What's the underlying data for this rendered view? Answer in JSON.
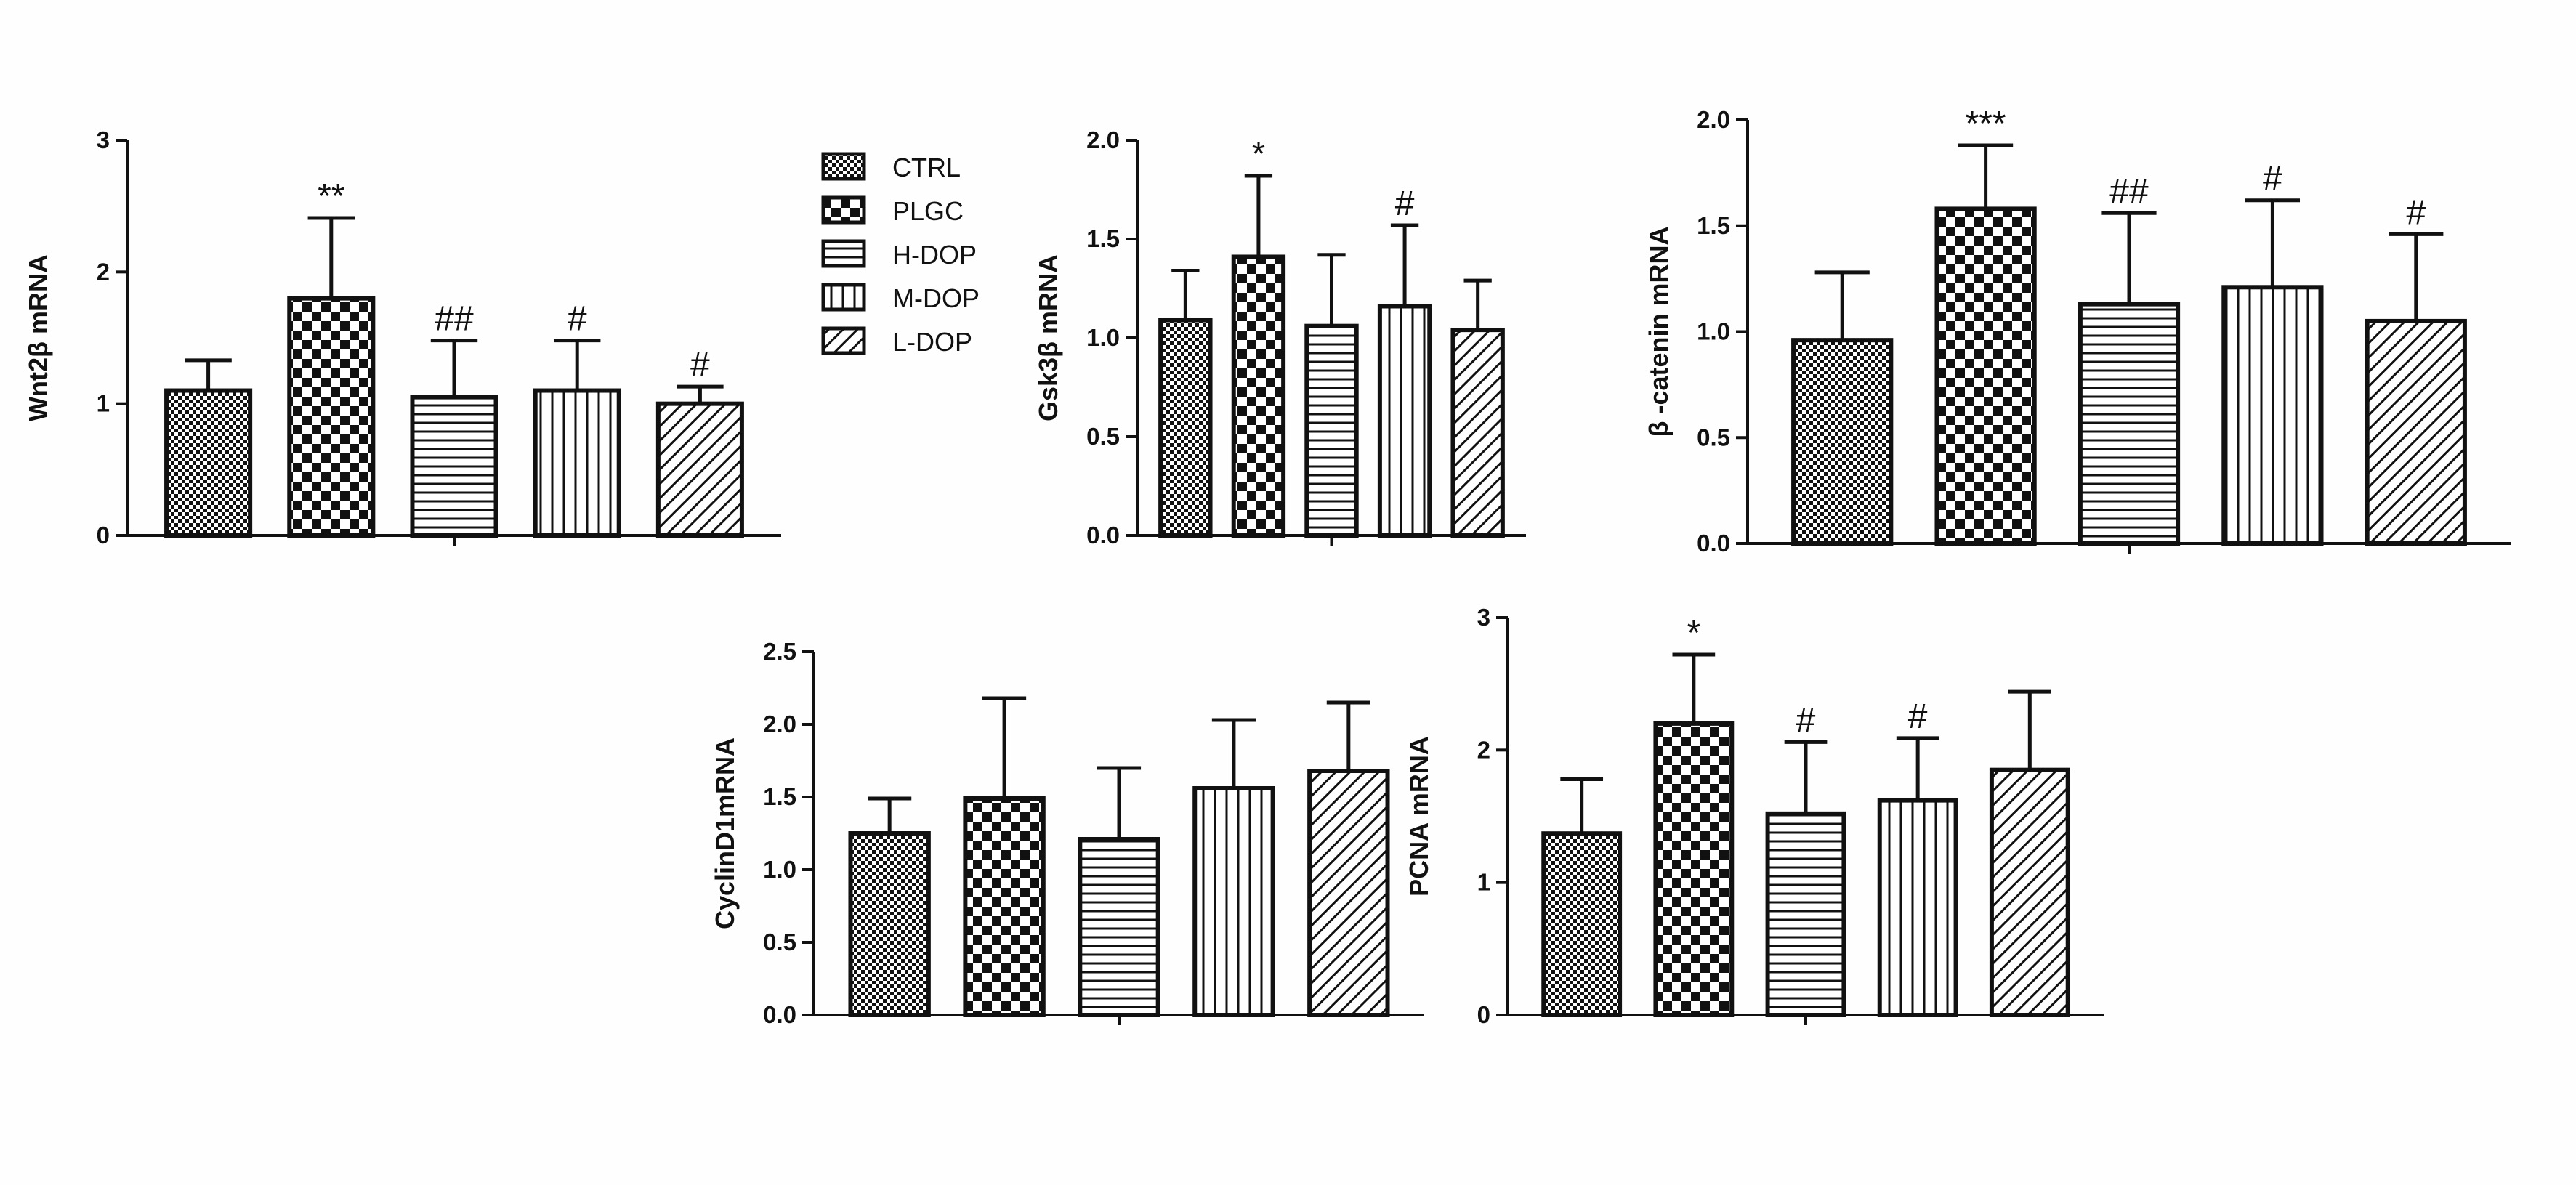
{
  "groups": [
    "CTRL",
    "PLGC",
    "H-DOP",
    "M-DOP",
    "L-DOP"
  ],
  "pattern_names": [
    "checker-fine",
    "checker-coarse",
    "horizontal-lines",
    "vertical-lines",
    "diagonal-lines"
  ],
  "colors": {
    "ink": "#111111",
    "paper": "#ffffff",
    "background": "#fefefe"
  },
  "chart_data": [
    {
      "id": "wnt",
      "type": "bar",
      "ylabel": "Wnt2β  mRNA",
      "ylim": [
        0,
        3
      ],
      "ticks": [
        0,
        1,
        2,
        3
      ],
      "tick_labels": [
        "0",
        "1",
        "2",
        "3"
      ],
      "categories": [
        "CTRL",
        "PLGC",
        "H-DOP",
        "M-DOP",
        "L-DOP"
      ],
      "values": [
        1.1,
        1.8,
        1.05,
        1.1,
        1.0
      ],
      "errors": [
        0.23,
        0.61,
        0.43,
        0.38,
        0.13
      ],
      "annotations": [
        "",
        "**",
        "##",
        "#",
        "#"
      ]
    },
    {
      "id": "gsk",
      "type": "bar",
      "ylabel": "Gsk3β mRNA",
      "ylim": [
        0,
        2.0
      ],
      "ticks": [
        0,
        0.5,
        1.0,
        1.5,
        2.0
      ],
      "tick_labels": [
        "0.0",
        "0.5",
        "1.0",
        "1.5",
        "2.0"
      ],
      "categories": [
        "CTRL",
        "PLGC",
        "H-DOP",
        "M-DOP",
        "L-DOP"
      ],
      "values": [
        1.09,
        1.41,
        1.06,
        1.16,
        1.04
      ],
      "errors": [
        0.25,
        0.41,
        0.36,
        0.41,
        0.25
      ],
      "annotations": [
        "",
        "*",
        "",
        "#",
        ""
      ]
    },
    {
      "id": "catenin",
      "type": "bar",
      "ylabel": "β -catenin mRNA",
      "ylim": [
        0,
        2.0
      ],
      "ticks": [
        0,
        0.5,
        1.0,
        1.5,
        2.0
      ],
      "tick_labels": [
        "0.0",
        "0.5",
        "1.0",
        "1.5",
        "2.0"
      ],
      "categories": [
        "CTRL",
        "PLGC",
        "H-DOP",
        "M-DOP",
        "L-DOP"
      ],
      "values": [
        0.96,
        1.58,
        1.13,
        1.21,
        1.05
      ],
      "errors": [
        0.32,
        0.3,
        0.43,
        0.41,
        0.41
      ],
      "annotations": [
        "",
        "***",
        "##",
        "#",
        "#"
      ]
    },
    {
      "id": "cyclin",
      "type": "bar",
      "ylabel": "CyclinD1mRNA",
      "ylim": [
        0,
        2.5
      ],
      "ticks": [
        0,
        0.5,
        1.0,
        1.5,
        2.0,
        2.5
      ],
      "tick_labels": [
        "0.0",
        "0.5",
        "1.0",
        "1.5",
        "2.0",
        "2.5"
      ],
      "categories": [
        "CTRL",
        "PLGC",
        "H-DOP",
        "M-DOP",
        "L-DOP"
      ],
      "values": [
        1.25,
        1.49,
        1.21,
        1.56,
        1.68
      ],
      "errors": [
        0.24,
        0.69,
        0.49,
        0.47,
        0.47
      ],
      "annotations": [
        "",
        "",
        "",
        "",
        ""
      ]
    },
    {
      "id": "pcna",
      "type": "bar",
      "ylabel": "PCNA mRNA",
      "ylim": [
        0,
        3
      ],
      "ticks": [
        0,
        1,
        2,
        3
      ],
      "tick_labels": [
        "0",
        "1",
        "2",
        "3"
      ],
      "categories": [
        "CTRL",
        "PLGC",
        "H-DOP",
        "M-DOP",
        "L-DOP"
      ],
      "values": [
        1.37,
        2.2,
        1.52,
        1.62,
        1.85
      ],
      "errors": [
        0.41,
        0.52,
        0.54,
        0.47,
        0.59
      ],
      "annotations": [
        "",
        "*",
        "#",
        "#",
        ""
      ]
    }
  ]
}
